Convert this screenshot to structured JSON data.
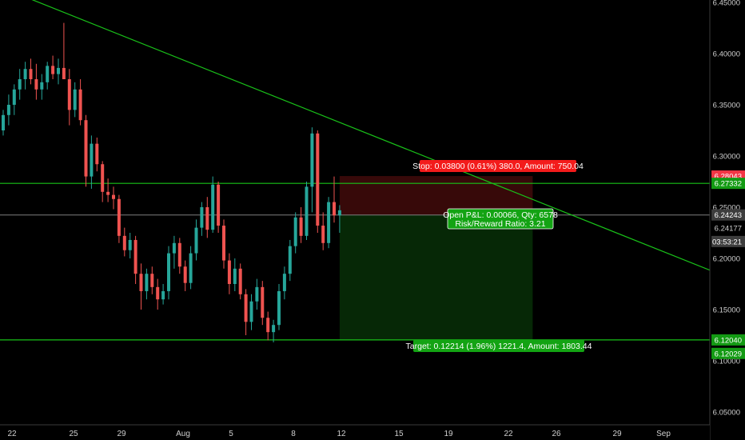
{
  "chart_data": {
    "type": "candlestick",
    "title": "",
    "xlabel": "",
    "ylabel": "",
    "ylim": [
      6.045,
      6.452
    ],
    "grid": false,
    "x_tick_labels": [
      "22",
      "25",
      "29",
      "Aug",
      "5",
      "8",
      "12",
      "15",
      "19",
      "22",
      "26",
      "29",
      "Sep"
    ],
    "y_tick_labels": [
      "6.45000",
      "6.40000",
      "6.35000",
      "6.30000",
      "6.25000",
      "6.20000",
      "6.15000",
      "6.10000",
      "6.05000"
    ],
    "y_ticks": [
      6.45,
      6.4,
      6.35,
      6.3,
      6.25,
      6.2,
      6.15,
      6.1,
      6.05
    ],
    "colors": {
      "background": "#000000",
      "up": "#26a69a",
      "down": "#ef5350",
      "line": "#19c219",
      "crosshair": "#7f7f7f",
      "stop_zone": "#3a0a0a",
      "target_zone": "#062a06",
      "stop_label": "#f31b1b",
      "target_label": "#13a313",
      "tag_red": "#f23645",
      "tag_green": "#139a13",
      "tag_gray": "#3d3d3d",
      "axis_text": "#cfcfcf"
    },
    "candles": [
      {
        "o": 6.325,
        "h": 6.345,
        "l": 6.32,
        "c": 6.34
      },
      {
        "o": 6.34,
        "h": 6.36,
        "l": 6.33,
        "c": 6.35
      },
      {
        "o": 6.35,
        "h": 6.37,
        "l": 6.34,
        "c": 6.365
      },
      {
        "o": 6.365,
        "h": 6.385,
        "l": 6.355,
        "c": 6.375
      },
      {
        "o": 6.375,
        "h": 6.392,
        "l": 6.365,
        "c": 6.385
      },
      {
        "o": 6.385,
        "h": 6.395,
        "l": 6.37,
        "c": 6.375
      },
      {
        "o": 6.375,
        "h": 6.39,
        "l": 6.355,
        "c": 6.365
      },
      {
        "o": 6.365,
        "h": 6.38,
        "l": 6.355,
        "c": 6.372
      },
      {
        "o": 6.372,
        "h": 6.392,
        "l": 6.365,
        "c": 6.388
      },
      {
        "o": 6.388,
        "h": 6.398,
        "l": 6.375,
        "c": 6.38
      },
      {
        "o": 6.38,
        "h": 6.395,
        "l": 6.37,
        "c": 6.386
      },
      {
        "o": 6.386,
        "h": 6.43,
        "l": 6.375,
        "c": 6.375
      },
      {
        "o": 6.375,
        "h": 6.385,
        "l": 6.33,
        "c": 6.345
      },
      {
        "o": 6.345,
        "h": 6.372,
        "l": 6.338,
        "c": 6.365
      },
      {
        "o": 6.365,
        "h": 6.375,
        "l": 6.33,
        "c": 6.335
      },
      {
        "o": 6.335,
        "h": 6.34,
        "l": 6.27,
        "c": 6.28
      },
      {
        "o": 6.28,
        "h": 6.32,
        "l": 6.268,
        "c": 6.312
      },
      {
        "o": 6.312,
        "h": 6.318,
        "l": 6.285,
        "c": 6.292
      },
      {
        "o": 6.292,
        "h": 6.295,
        "l": 6.255,
        "c": 6.265
      },
      {
        "o": 6.265,
        "h": 6.278,
        "l": 6.255,
        "c": 6.262
      },
      {
        "o": 6.262,
        "h": 6.27,
        "l": 6.248,
        "c": 6.258
      },
      {
        "o": 6.258,
        "h": 6.262,
        "l": 6.215,
        "c": 6.222
      },
      {
        "o": 6.222,
        "h": 6.23,
        "l": 6.202,
        "c": 6.208
      },
      {
        "o": 6.208,
        "h": 6.225,
        "l": 6.2,
        "c": 6.218
      },
      {
        "o": 6.218,
        "h": 6.222,
        "l": 6.175,
        "c": 6.185
      },
      {
        "o": 6.185,
        "h": 6.195,
        "l": 6.15,
        "c": 6.168
      },
      {
        "o": 6.168,
        "h": 6.19,
        "l": 6.16,
        "c": 6.185
      },
      {
        "o": 6.185,
        "h": 6.192,
        "l": 6.165,
        "c": 6.172
      },
      {
        "o": 6.172,
        "h": 6.18,
        "l": 6.15,
        "c": 6.16
      },
      {
        "o": 6.16,
        "h": 6.175,
        "l": 6.155,
        "c": 6.168
      },
      {
        "o": 6.168,
        "h": 6.212,
        "l": 6.16,
        "c": 6.205
      },
      {
        "o": 6.205,
        "h": 6.222,
        "l": 6.19,
        "c": 6.215
      },
      {
        "o": 6.215,
        "h": 6.22,
        "l": 6.185,
        "c": 6.192
      },
      {
        "o": 6.192,
        "h": 6.198,
        "l": 6.168,
        "c": 6.176
      },
      {
        "o": 6.176,
        "h": 6.212,
        "l": 6.17,
        "c": 6.205
      },
      {
        "o": 6.205,
        "h": 6.238,
        "l": 6.198,
        "c": 6.23
      },
      {
        "o": 6.23,
        "h": 6.255,
        "l": 6.222,
        "c": 6.25
      },
      {
        "o": 6.25,
        "h": 6.26,
        "l": 6.22,
        "c": 6.228
      },
      {
        "o": 6.228,
        "h": 6.28,
        "l": 6.225,
        "c": 6.272
      },
      {
        "o": 6.272,
        "h": 6.275,
        "l": 6.225,
        "c": 6.232
      },
      {
        "o": 6.232,
        "h": 6.238,
        "l": 6.19,
        "c": 6.198
      },
      {
        "o": 6.198,
        "h": 6.205,
        "l": 6.165,
        "c": 6.175
      },
      {
        "o": 6.175,
        "h": 6.2,
        "l": 6.168,
        "c": 6.19
      },
      {
        "o": 6.19,
        "h": 6.195,
        "l": 6.16,
        "c": 6.165
      },
      {
        "o": 6.165,
        "h": 6.17,
        "l": 6.125,
        "c": 6.138
      },
      {
        "o": 6.138,
        "h": 6.165,
        "l": 6.13,
        "c": 6.158
      },
      {
        "o": 6.158,
        "h": 6.18,
        "l": 6.15,
        "c": 6.172
      },
      {
        "o": 6.172,
        "h": 6.178,
        "l": 6.135,
        "c": 6.142
      },
      {
        "o": 6.142,
        "h": 6.148,
        "l": 6.12,
        "c": 6.128
      },
      {
        "o": 6.128,
        "h": 6.14,
        "l": 6.118,
        "c": 6.135
      },
      {
        "o": 6.135,
        "h": 6.175,
        "l": 6.13,
        "c": 6.168
      },
      {
        "o": 6.168,
        "h": 6.192,
        "l": 6.16,
        "c": 6.185
      },
      {
        "o": 6.185,
        "h": 6.218,
        "l": 6.178,
        "c": 6.212
      },
      {
        "o": 6.212,
        "h": 6.245,
        "l": 6.205,
        "c": 6.24
      },
      {
        "o": 6.24,
        "h": 6.25,
        "l": 6.215,
        "c": 6.222
      },
      {
        "o": 6.222,
        "h": 6.275,
        "l": 6.218,
        "c": 6.27
      },
      {
        "o": 6.27,
        "h": 6.328,
        "l": 6.245,
        "c": 6.322
      },
      {
        "o": 6.322,
        "h": 6.325,
        "l": 6.225,
        "c": 6.232
      },
      {
        "o": 6.232,
        "h": 6.245,
        "l": 6.208,
        "c": 6.215
      },
      {
        "o": 6.215,
        "h": 6.26,
        "l": 6.21,
        "c": 6.255
      },
      {
        "o": 6.255,
        "h": 6.28,
        "l": 6.235,
        "c": 6.242
      },
      {
        "o": 6.242,
        "h": 6.252,
        "l": 6.225,
        "c": 6.247
      }
    ],
    "trendline": {
      "x1": -0.5,
      "y1": 6.465,
      "x2": 160,
      "y2": 6.12
    },
    "levels": [
      6.2733,
      6.1204
    ],
    "current_price": 6.24243,
    "position": {
      "entry": 6.24243,
      "stop": 6.28043,
      "target": 6.12029,
      "x_start": 61,
      "x_end": 96
    },
    "labels": {
      "stop": "Stop: 0.03800 (0.61%) 380.0, Amount: 750.04",
      "target": "Target: 0.12214 (1.96%) 1221.4, Amount: 1803.44",
      "pnl_line1": "Open P&L: 0.00066, Qty: 6578",
      "pnl_line2": "Risk/Reward Ratio: 3.21"
    },
    "price_tags": {
      "stop": "6.28043",
      "level_top": "6.27332",
      "price": "6.24243",
      "bid": "6.24177",
      "countdown": "03:53:21",
      "level_bottom": "6.12040",
      "target": "6.12029"
    }
  }
}
